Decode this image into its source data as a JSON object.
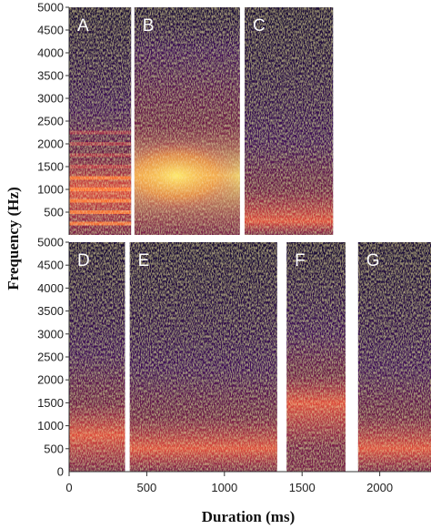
{
  "chart_data": {
    "type": "heatmap",
    "description_kind": "spectrograms",
    "xlabel": "Duration (ms)",
    "ylabel": "Frequency (Hz)",
    "x_ticks": [
      0,
      500,
      1000,
      1500,
      2000
    ],
    "y_ticks": [
      500,
      1000,
      1500,
      2000,
      2500,
      3000,
      3500,
      4000,
      4500,
      5000
    ],
    "y_tick_labels": [
      "500",
      "1000",
      "1500",
      "2000",
      "2500",
      "3000",
      "3500",
      "4000",
      "4500",
      "5000"
    ],
    "x_tick_labels": [
      "0",
      "500",
      "1000",
      "1500",
      "2000"
    ],
    "ylim": [
      0,
      5000
    ],
    "colormap": "inferno",
    "colors": {
      "background": "#ffffff",
      "low": "#1b0838",
      "mid": "#c3305a",
      "high": "#fde96a"
    },
    "rows": [
      {
        "panels": [
          {
            "label": "A",
            "x_start_ms": 0,
            "x_end_ms": 400,
            "pattern": "harmonic",
            "bands_hz": [
              250,
              500,
              750,
              1000,
              1250,
              1500,
              1750,
              2000,
              2250
            ],
            "peak_hz": 1000
          },
          {
            "label": "B",
            "x_start_ms": 420,
            "x_end_ms": 1100,
            "pattern": "noisy-broadband",
            "peak_hz": 1300
          },
          {
            "label": "C",
            "x_start_ms": 1130,
            "x_end_ms": 1700,
            "pattern": "low-band",
            "peak_hz": 300
          }
        ]
      },
      {
        "panels": [
          {
            "label": "D",
            "x_start_ms": 0,
            "x_end_ms": 360,
            "pattern": "low-band",
            "peak_hz": 800
          },
          {
            "label": "E",
            "x_start_ms": 390,
            "x_end_ms": 1340,
            "pattern": "low-band",
            "peak_hz": 500
          },
          {
            "label": "F",
            "x_start_ms": 1400,
            "x_end_ms": 1780,
            "pattern": "mid-band",
            "peak_hz": 1500
          },
          {
            "label": "G",
            "x_start_ms": 1860,
            "x_end_ms": 2330,
            "pattern": "low-band",
            "peak_hz": 500
          }
        ]
      }
    ],
    "xlim": [
      0,
      2330
    ]
  }
}
